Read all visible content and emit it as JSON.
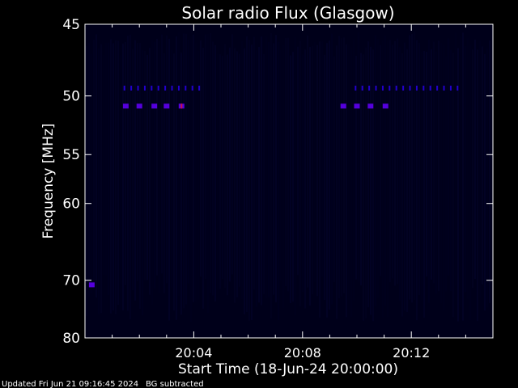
{
  "chart_data": {
    "type": "heatmap",
    "title": "Solar radio Flux (Glasgow)",
    "xlabel": "Start Time (18-Jun-24 20:00:00)",
    "ylabel": "Frequency [MHz]",
    "x_tick_labels": [
      "20:04",
      "20:08",
      "20:12"
    ],
    "x_tick_minutes": [
      4,
      8,
      12
    ],
    "xlim_minutes": [
      0.0,
      15.0
    ],
    "y_tick_values": [
      45,
      50,
      55,
      60,
      70,
      80
    ],
    "ylim": [
      45,
      80
    ],
    "y_scale": "reciprocal",
    "background_color": "#000000",
    "plot_color": "#00001a",
    "axis_color": "#ffffff",
    "signal_colors": [
      "#2200cc",
      "#5500dd",
      "#cc1144"
    ],
    "series": [
      {
        "frequency": 49.4,
        "style": "ticks",
        "minutes": [
          1.45,
          1.7,
          1.95,
          2.2,
          2.45,
          2.7,
          2.95,
          3.2,
          3.45,
          3.7,
          3.95,
          4.2,
          9.95,
          10.2,
          10.45,
          10.7,
          10.95,
          11.2,
          11.45,
          11.7,
          11.95,
          12.2,
          12.45,
          12.7,
          12.95,
          13.2,
          13.45,
          13.7
        ]
      },
      {
        "frequency": 50.8,
        "style": "blocks",
        "minutes": [
          1.5,
          2.0,
          2.55,
          3.0,
          3.55,
          9.5,
          10.0,
          10.5,
          11.05
        ]
      },
      {
        "frequency": 70.7,
        "style": "blocks",
        "minutes": [
          0.25
        ]
      }
    ],
    "footer": {
      "updated": "Updated Fri Jun 21 09:16:45 2024",
      "note": "BG subtracted"
    }
  }
}
